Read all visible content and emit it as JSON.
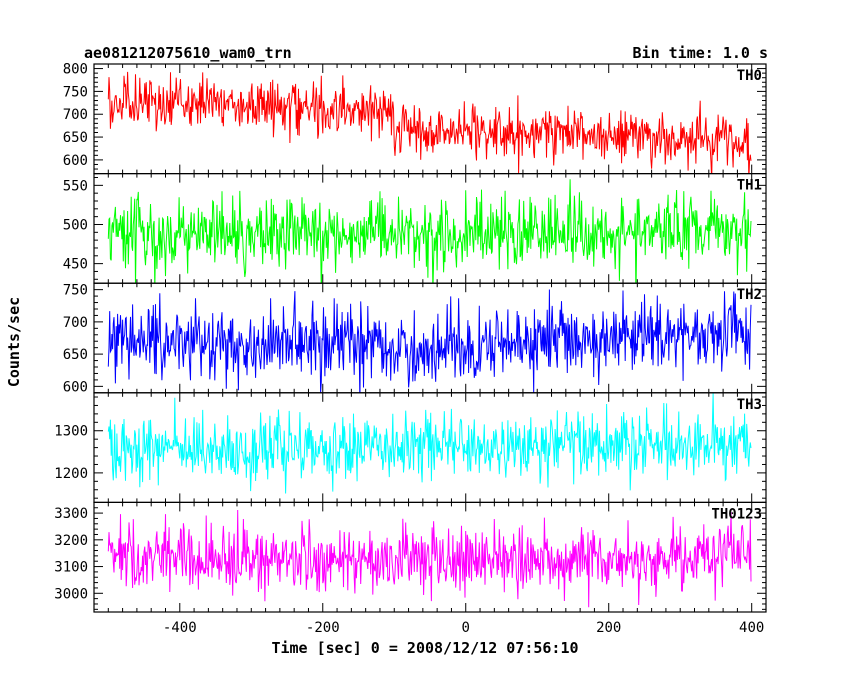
{
  "header": {
    "title": "ae081212075610_wam0_trn",
    "bin_time": "Bin time: 1.0 s"
  },
  "chart_data": {
    "type": "line",
    "xlabel": "Time [sec] 0 = 2008/12/12 07:56:10",
    "ylabel": "Counts/sec",
    "xlim": [
      -520,
      420
    ],
    "x_ticks": [
      -400,
      -200,
      0,
      200,
      400
    ],
    "x_range_data": [
      -500,
      399
    ],
    "bin_seconds": 1.0,
    "grid": false,
    "panels": [
      {
        "name": "TH0",
        "color": "#ff0000",
        "ylim": [
          570,
          810
        ],
        "y_ticks": [
          600,
          650,
          700,
          750,
          800
        ],
        "trend_start": 730,
        "trend_end": 640,
        "noise_sd": 28,
        "note": "step down near -100 s"
      },
      {
        "name": "TH1",
        "color": "#00ff00",
        "ylim": [
          425,
          565
        ],
        "y_ticks": [
          450,
          500,
          550
        ],
        "trend_start": 490,
        "trend_end": 490,
        "noise_sd": 22
      },
      {
        "name": "TH2",
        "color": "#0000ff",
        "ylim": [
          590,
          760
        ],
        "y_ticks": [
          600,
          650,
          700,
          750
        ],
        "trend_start": 665,
        "trend_end": 690,
        "noise_sd": 28
      },
      {
        "name": "TH3",
        "color": "#00ffff",
        "ylim": [
          1130,
          1390
        ],
        "y_ticks": [
          1200,
          1300
        ],
        "trend_start": 1255,
        "trend_end": 1270,
        "noise_sd": 38
      },
      {
        "name": "TH0123",
        "color": "#ff00ff",
        "ylim": [
          2930,
          3340
        ],
        "y_ticks": [
          3000,
          3100,
          3200,
          3300
        ],
        "trend_start": 3140,
        "trend_end": 3140,
        "noise_sd": 60
      }
    ]
  }
}
